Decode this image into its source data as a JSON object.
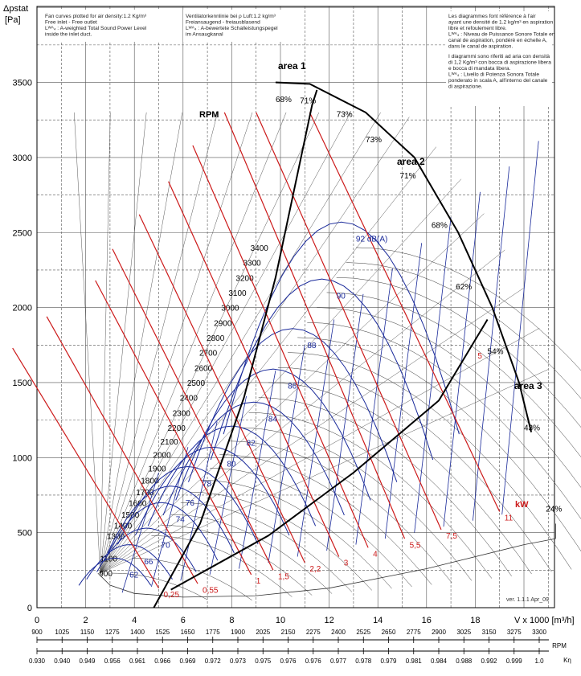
{
  "header": {
    "notes_en": [
      "Fan curves plotted for air density:1.2 Kg/m³",
      "Free inlet - Free outlet",
      "Lᵂᴬ₄ : A-weighted Total Sound Power Level",
      "inside the inlet duct."
    ],
    "notes_de": [
      "Ventilatorkennlinie bei ρ Luft:1.2 kg/m³",
      "Freiansaugend - freiausblasend",
      "Lᵂᴬ₄ : A-bewertete Schalleistungspegel",
      "im Ansaugkanal"
    ],
    "notes_fr": [
      "Les diagrammes font référence à l'air",
      "ayant une densité de 1.2 kg/m³ en aspiration",
      "libre et refoulement libre.",
      "Lᵂᴬ₄ : Niveau de Puissance Sonore Totale en",
      "canal de aspiration, pondéré en échelle A,",
      "dans le canal de aspiration."
    ],
    "notes_it": [
      "I diagrammi sono riferiti ad aria con densità",
      "di 1,2 Kg/m³ con bocca di aspirazione libera",
      "e bocca di mandata libera.",
      "Lᵂᴬ₄ : Livello di Potenza Sonora Totale",
      "ponderato in scala A, all'interno del canale",
      "di aspirazione."
    ]
  },
  "labels": {
    "rpm_label": "RPM",
    "kw_label": "kW",
    "version": "ver. 1.1.1 Apr_09",
    "area1": "area 1",
    "area2": "area 2",
    "area3": "area 3"
  },
  "colors": {
    "grid": "#555555",
    "blue_curves": "#1a2a9a",
    "red_lines": "#cc1a1a",
    "black": "#000000"
  },
  "chart_data": {
    "type": "line",
    "ylabel": "Δpstat\n[Pa]",
    "xlabel": "V x 1000 [m³/h]",
    "xlim": [
      0,
      22
    ],
    "ylim": [
      0,
      3500
    ],
    "x_ticks": [
      "0",
      "2",
      "4",
      "6",
      "8",
      "10",
      "12",
      "14",
      "16",
      "18"
    ],
    "y_ticks": [
      "0",
      "500",
      "1000",
      "1500",
      "2000",
      "2500",
      "3000",
      "3500"
    ],
    "rpm_labels": [
      "900",
      "1100",
      "1300",
      "1400",
      "1500",
      "1600",
      "1700",
      "1800",
      "1900",
      "2000",
      "2100",
      "2200",
      "2300",
      "2400",
      "2500",
      "2600",
      "2700",
      "2800",
      "2900",
      "3000",
      "3100",
      "3200",
      "3300",
      "3400"
    ],
    "rpm_label_y_pa": [
      230,
      330,
      480,
      550,
      620,
      700,
      770,
      850,
      930,
      1020,
      1110,
      1200,
      1300,
      1400,
      1500,
      1600,
      1700,
      1800,
      1900,
      2000,
      2100,
      2200,
      2300,
      2400
    ],
    "rpm_line_x_pos": [
      3.9,
      4.7,
      5.5,
      5.9,
      6.3,
      6.7,
      7.1,
      7.5,
      7.9,
      8.3,
      8.7,
      9.1,
      9.5,
      9.9,
      10.3,
      10.7,
      11.1,
      11.5,
      11.9,
      12.3,
      12.7,
      13.1,
      13.5,
      13.9
    ],
    "efficiency_labels": [
      {
        "t": "68%",
        "x": 9.8,
        "y": 3370
      },
      {
        "t": "71%",
        "x": 10.8,
        "y": 3360
      },
      {
        "t": "73%",
        "x": 12.3,
        "y": 3270
      },
      {
        "t": "73%",
        "x": 13.5,
        "y": 3100
      },
      {
        "t": "71%",
        "x": 14.9,
        "y": 2860
      },
      {
        "t": "68%",
        "x": 16.2,
        "y": 2530
      },
      {
        "t": "62%",
        "x": 17.2,
        "y": 2120
      },
      {
        "t": "54%",
        "x": 18.5,
        "y": 1690
      },
      {
        "t": "43%",
        "x": 20.0,
        "y": 1180
      },
      {
        "t": "24%",
        "x": 20.9,
        "y": 640
      }
    ],
    "sound_labels": [
      {
        "t": "92 dB(A)",
        "x": 13.1,
        "y": 2440
      },
      {
        "t": "90",
        "x": 12.3,
        "y": 2060
      },
      {
        "t": "88",
        "x": 11.1,
        "y": 1730
      },
      {
        "t": "86",
        "x": 10.3,
        "y": 1460
      },
      {
        "t": "84",
        "x": 9.5,
        "y": 1240
      },
      {
        "t": "82",
        "x": 8.6,
        "y": 1080
      },
      {
        "t": "80",
        "x": 7.8,
        "y": 940
      },
      {
        "t": "78",
        "x": 6.8,
        "y": 810
      },
      {
        "t": "76",
        "x": 6.1,
        "y": 680
      },
      {
        "t": "74",
        "x": 5.7,
        "y": 570
      },
      {
        "t": "70",
        "x": 5.1,
        "y": 400
      },
      {
        "t": "66",
        "x": 4.4,
        "y": 290
      },
      {
        "t": "62",
        "x": 3.8,
        "y": 200
      }
    ],
    "power_labels": [
      {
        "t": "0,25",
        "x": 5.2,
        "y": 70
      },
      {
        "t": "0,55",
        "x": 6.8,
        "y": 100
      },
      {
        "t": "1",
        "x": 9.0,
        "y": 160
      },
      {
        "t": "1,5",
        "x": 9.9,
        "y": 190
      },
      {
        "t": "2,2",
        "x": 11.2,
        "y": 240
      },
      {
        "t": "3",
        "x": 12.6,
        "y": 280
      },
      {
        "t": "4",
        "x": 13.8,
        "y": 340
      },
      {
        "t": "5,5",
        "x": 15.3,
        "y": 400
      },
      {
        "t": "7,5",
        "x": 16.8,
        "y": 460
      },
      {
        "t": "11",
        "x": 19.2,
        "y": 580
      },
      {
        "t": "5",
        "x": 18.1,
        "y": 1660
      }
    ],
    "rpm_scale": {
      "label": "RPM",
      "ticks": [
        "900",
        "1025",
        "1150",
        "1275",
        "1400",
        "1525",
        "1650",
        "1775",
        "1900",
        "2025",
        "2150",
        "2275",
        "2400",
        "2525",
        "2650",
        "2775",
        "2900",
        "3025",
        "3150",
        "3275",
        "3300"
      ]
    },
    "eta_scale": {
      "label": "Kη",
      "ticks": [
        "0.930",
        "0.940",
        "0.949",
        "0.956",
        "0.961",
        "0.966",
        "0.969",
        "0.972",
        "0.973",
        "0.975",
        "0.976",
        "0.976",
        "0.977",
        "0.978",
        "0.979",
        "0.981",
        "0.984",
        "0.988",
        "0.992",
        "0.999",
        "1.0"
      ]
    }
  }
}
